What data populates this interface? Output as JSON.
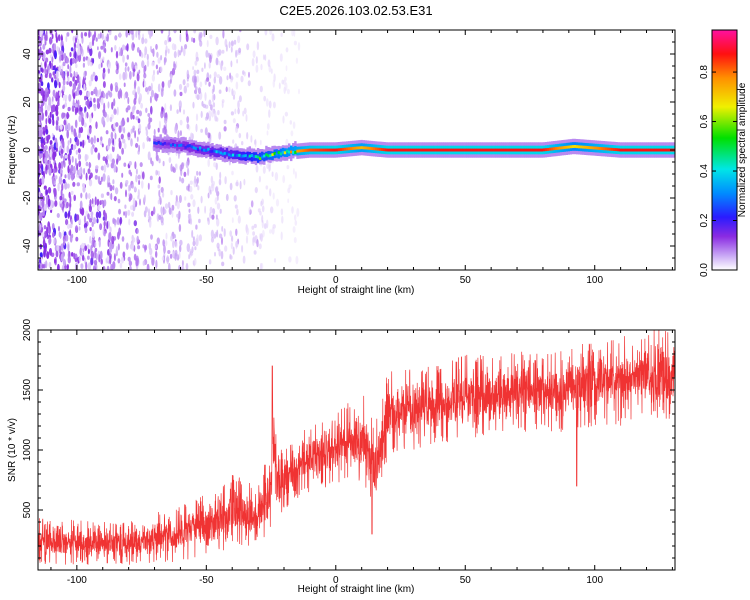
{
  "figure": {
    "title": "C2E5.2026.103.02.53.E31"
  },
  "chart_data": [
    {
      "id": "spectrogram",
      "type": "heatmap",
      "xlabel": "Height of straight line (km)",
      "ylabel": "Frequency (Hz)",
      "xlim": [
        -115,
        131
      ],
      "ylim": [
        -50,
        50
      ],
      "xticks": [
        -100,
        -50,
        0,
        50,
        100
      ],
      "yticks": [
        -40,
        -20,
        0,
        20,
        40
      ],
      "colorbar": {
        "label": "Normalized spectral amplitude",
        "ticks": [
          "0.0",
          "0.2",
          "0.4",
          "0.6",
          "0.8"
        ],
        "tick_values": [
          0,
          0.2,
          0.4,
          0.6,
          0.8
        ],
        "range": [
          0,
          0.97
        ],
        "colormap": "white-purple-blue-cyan-green-yellow-red-magenta"
      },
      "ridge": {
        "description_points": [
          {
            "x": -70,
            "freq": 3,
            "amp": 0.25
          },
          {
            "x": -60,
            "freq": 2,
            "amp": 0.3
          },
          {
            "x": -50,
            "freq": 0,
            "amp": 0.35
          },
          {
            "x": -40,
            "freq": -2,
            "amp": 0.4
          },
          {
            "x": -30,
            "freq": -3,
            "amp": 0.55
          },
          {
            "x": -20,
            "freq": -1,
            "amp": 0.7
          },
          {
            "x": -10,
            "freq": 0,
            "amp": 0.85
          },
          {
            "x": 0,
            "freq": 0,
            "amp": 0.9
          },
          {
            "x": 10,
            "freq": 1,
            "amp": 0.75
          },
          {
            "x": 20,
            "freq": 0,
            "amp": 0.9
          },
          {
            "x": 50,
            "freq": 0,
            "amp": 0.9
          },
          {
            "x": 80,
            "freq": 0,
            "amp": 0.9
          },
          {
            "x": 92,
            "freq": 1.5,
            "amp": 0.7
          },
          {
            "x": 110,
            "freq": 0,
            "amp": 0.9
          },
          {
            "x": 131,
            "freq": 0,
            "amp": 0.9
          }
        ],
        "noise_region_x": [
          -115,
          -20
        ]
      }
    },
    {
      "id": "snr",
      "type": "line",
      "xlabel": "Height of straight line (km)",
      "ylabel": "SNR (10 * v/v)",
      "xlim": [
        -115,
        131
      ],
      "ylim": [
        0,
        2000
      ],
      "xticks": [
        -100,
        -50,
        0,
        50,
        100
      ],
      "yticks": [
        500,
        1000,
        1500,
        2000
      ],
      "color": "#f03333",
      "envelope": {
        "x": [
          -115,
          -100,
          -80,
          -60,
          -50,
          -40,
          -30,
          -25,
          -24,
          -22,
          -20,
          -10,
          0,
          5,
          10,
          15,
          20,
          30,
          40,
          50,
          60,
          70,
          80,
          90,
          100,
          110,
          120,
          131
        ],
        "low": [
          40,
          40,
          40,
          60,
          120,
          180,
          200,
          300,
          500,
          250,
          500,
          650,
          700,
          750,
          700,
          400,
          950,
          1000,
          1050,
          1100,
          1100,
          1150,
          1150,
          1150,
          1200,
          1200,
          1250,
          1250
        ],
        "high": [
          450,
          420,
          400,
          550,
          650,
          800,
          700,
          1100,
          1700,
          1000,
          1050,
          1200,
          1300,
          1400,
          1500,
          1200,
          1650,
          1700,
          1700,
          1800,
          1800,
          1850,
          1800,
          1850,
          1950,
          1950,
          2000,
          2000
        ]
      },
      "outliers": [
        {
          "x": -24.5,
          "y": 1700
        },
        {
          "x": 14,
          "y": 300
        },
        {
          "x": 93,
          "y": 700
        }
      ]
    }
  ]
}
